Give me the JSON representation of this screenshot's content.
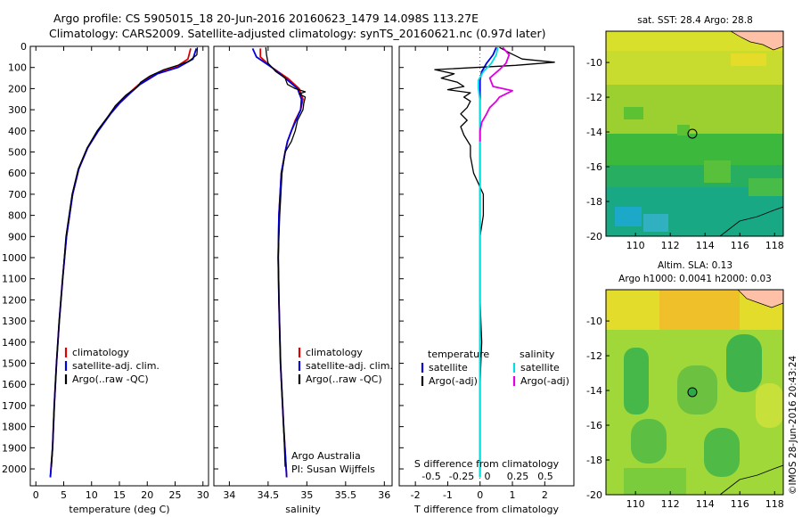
{
  "header": {
    "line1": "Argo profile: CS 5905015_18 20-Jun-2016 20160623_1479 14.098S 113.27E",
    "line2": "Climatology: CARS2009. Satellite-adjusted climatology: synTS_20160621.nc (0.97d later)"
  },
  "side_stamp": "©IMOS 28-Jun-2016 20:43:24",
  "colors": {
    "clim": "#e00000",
    "sat": "#0000e0",
    "argo": "#000000",
    "cyan": "#00e0e0",
    "magenta": "#e000e0"
  },
  "chart_data": [
    {
      "type": "line",
      "xlabel": "temperature (deg C)",
      "xlim": [
        -1,
        31
      ],
      "xticks": [
        0,
        5,
        10,
        15,
        20,
        25,
        30
      ],
      "ylim": [
        0,
        2080
      ],
      "yticks": [
        0,
        100,
        200,
        300,
        400,
        500,
        600,
        700,
        800,
        900,
        1000,
        1100,
        1200,
        1300,
        1400,
        1500,
        1600,
        1700,
        1800,
        1900,
        2000
      ],
      "legend": [
        "climatology",
        "satellite-adj. clim.",
        "Argo(..raw -QC)"
      ],
      "series": [
        {
          "name": "climatology",
          "role": "clim",
          "depth": [
            10,
            60,
            100,
            130,
            180,
            220,
            270,
            320,
            400,
            480,
            580,
            700,
            900,
            1100,
            1300,
            1500,
            1700,
            1900,
            2040
          ],
          "values": [
            27.8,
            27.3,
            25.0,
            21.5,
            18.5,
            16.8,
            14.8,
            13.3,
            11.2,
            9.3,
            7.7,
            6.6,
            5.5,
            4.8,
            4.2,
            3.7,
            3.3,
            3.0,
            2.6
          ]
        },
        {
          "name": "satellite-adj. clim.",
          "role": "sat",
          "depth": [
            10,
            60,
            100,
            130,
            180,
            220,
            270,
            320,
            400,
            480,
            580,
            700,
            900,
            1100,
            1300,
            1500,
            1700,
            1900,
            2040
          ],
          "values": [
            28.8,
            28.2,
            25.5,
            21.8,
            18.7,
            17.0,
            15.0,
            13.4,
            11.2,
            9.3,
            7.7,
            6.6,
            5.5,
            4.8,
            4.2,
            3.7,
            3.3,
            3.0,
            2.6
          ]
        },
        {
          "name": "Argo(..raw -QC)",
          "role": "argo",
          "depth": [
            5,
            40,
            70,
            90,
            110,
            140,
            170,
            190,
            230,
            280,
            330,
            400,
            480,
            580,
            700,
            900,
            1100,
            1300,
            1500,
            1700,
            1900,
            1990
          ],
          "values": [
            29.0,
            28.9,
            27.5,
            25.5,
            23.0,
            20.5,
            18.8,
            18.3,
            16.2,
            14.3,
            13.0,
            11.0,
            9.2,
            7.6,
            6.5,
            5.4,
            4.8,
            4.2,
            3.7,
            3.3,
            3.0,
            2.8
          ]
        }
      ]
    },
    {
      "type": "line",
      "xlabel": "salinity",
      "xlim": [
        33.8,
        36.1
      ],
      "xticks": [
        34,
        34.5,
        35,
        35.5,
        36
      ],
      "ylim": [
        0,
        2080
      ],
      "legend": [
        "climatology",
        "satellite-adj. clim.",
        "Argo(..raw -QC)"
      ],
      "annotation": [
        "Argo Australia",
        "PI: Susan Wijffels"
      ],
      "series": [
        {
          "name": "climatology",
          "role": "clim",
          "depth": [
            10,
            50,
            100,
            150,
            200,
            250,
            300,
            350,
            400,
            450,
            500,
            600,
            800,
            1000,
            1200,
            1500,
            1800,
            2040
          ],
          "values": [
            34.4,
            34.4,
            34.55,
            34.75,
            34.9,
            34.95,
            34.92,
            34.85,
            34.8,
            34.75,
            34.72,
            34.67,
            34.64,
            34.63,
            34.64,
            34.66,
            34.7,
            34.74
          ]
        },
        {
          "name": "satellite-adj. clim.",
          "role": "sat",
          "depth": [
            10,
            50,
            100,
            150,
            200,
            250,
            300,
            350,
            400,
            450,
            500,
            600,
            800,
            1000,
            1200,
            1500,
            1800,
            2040
          ],
          "values": [
            34.3,
            34.35,
            34.55,
            34.72,
            34.88,
            34.93,
            34.92,
            34.86,
            34.8,
            34.75,
            34.72,
            34.67,
            34.64,
            34.63,
            34.64,
            34.66,
            34.7,
            34.74
          ]
        },
        {
          "name": "Argo(..raw -QC)",
          "role": "argo",
          "depth": [
            5,
            40,
            80,
            120,
            150,
            180,
            200,
            215,
            225,
            240,
            270,
            300,
            350,
            400,
            450,
            500,
            600,
            800,
            1000,
            1200,
            1500,
            1800,
            1990
          ],
          "values": [
            34.47,
            34.48,
            34.5,
            34.6,
            34.72,
            34.75,
            34.85,
            34.98,
            34.9,
            34.98,
            34.96,
            34.95,
            34.88,
            34.85,
            34.8,
            34.72,
            34.68,
            34.65,
            34.63,
            34.64,
            34.66,
            34.7,
            34.72
          ]
        }
      ]
    },
    {
      "type": "line",
      "xlabel": "T difference from climatology",
      "xlabel_top": "S difference from climatology",
      "xlim": [
        -2.5,
        2.9
      ],
      "xticks": [
        -2,
        -1,
        0,
        1,
        2
      ],
      "xticks_top": [
        "-0.5",
        "-0.25",
        "0",
        "0.25",
        "0.5"
      ],
      "ylim": [
        0,
        2080
      ],
      "legend_left_title": "temperature",
      "legend_right_title": "salinity",
      "legend": [
        "satellite",
        "Argo(-adj)",
        "satellite",
        "Argo(-adj)"
      ],
      "series": [
        {
          "name": "satellite",
          "role": "sat",
          "depth": [
            5,
            40,
            80,
            120,
            160,
            200,
            260,
            320,
            400,
            500,
            700,
            1000,
            1400,
            1800,
            2040
          ],
          "values": [
            0.5,
            0.4,
            0.2,
            0.05,
            0.0,
            0.0,
            0.0,
            0.0,
            0.0,
            0.0,
            0.0,
            0.0,
            0.0,
            0.0,
            0.0
          ]
        },
        {
          "name": "Argo(-adj)",
          "role": "argo",
          "depth": [
            5,
            30,
            60,
            75,
            90,
            110,
            130,
            150,
            170,
            190,
            205,
            220,
            240,
            260,
            290,
            320,
            350,
            380,
            420,
            470,
            520,
            600,
            700,
            800,
            900,
            1000,
            1200,
            1400,
            1600,
            1800,
            2000
          ],
          "values": [
            0.6,
            0.9,
            1.3,
            2.3,
            1.1,
            -1.4,
            -0.8,
            -1.2,
            -0.7,
            -0.5,
            -1.0,
            -0.3,
            -0.5,
            -0.3,
            -0.4,
            -0.6,
            -0.4,
            -0.6,
            -0.5,
            -0.3,
            -0.3,
            -0.2,
            0.1,
            0.1,
            0.0,
            0.0,
            0.0,
            0.05,
            0.0,
            0.0,
            0.0
          ]
        },
        {
          "name": "satellite",
          "role": "cyan",
          "depth": [
            5,
            40,
            80,
            120,
            160,
            200,
            260,
            320,
            400,
            600,
            1000,
            1500,
            2040
          ],
          "values": [
            0.55,
            0.5,
            0.35,
            0.1,
            -0.05,
            -0.05,
            0.0,
            0.0,
            0.0,
            0.0,
            0.0,
            0.0,
            0.0
          ]
        },
        {
          "name": "Argo(-adj)",
          "role": "magenta",
          "depth": [
            5,
            40,
            80,
            110,
            150,
            190,
            210,
            225,
            240,
            260,
            290,
            320,
            360,
            400,
            450
          ],
          "values": [
            0.7,
            0.9,
            0.8,
            0.6,
            0.3,
            0.4,
            1.0,
            0.8,
            0.6,
            0.5,
            0.3,
            0.2,
            0.05,
            0.0,
            0.0
          ]
        }
      ]
    },
    {
      "type": "heatmap",
      "title": "sat. SST: 28.4  Argo: 28.8",
      "xticks": [
        110,
        112,
        114,
        116,
        118
      ],
      "yticks": [
        -10,
        -12,
        -14,
        -16,
        -18,
        -20
      ],
      "xlim": [
        108.3,
        118.5
      ],
      "ylim": [
        -20,
        -8.2
      ],
      "marker": {
        "lon": 113.27,
        "lat": -14.098
      }
    },
    {
      "type": "heatmap",
      "title": "Altim. SLA: 0.13",
      "subtitle": "Argo h1000: 0.0041 h2000: 0.03",
      "xticks": [
        110,
        112,
        114,
        116,
        118
      ],
      "yticks": [
        -10,
        -12,
        -14,
        -16,
        -18,
        -20
      ],
      "xlim": [
        108.3,
        118.5
      ],
      "ylim": [
        -20,
        -8.2
      ],
      "marker": {
        "lon": 113.27,
        "lat": -14.098
      }
    }
  ]
}
